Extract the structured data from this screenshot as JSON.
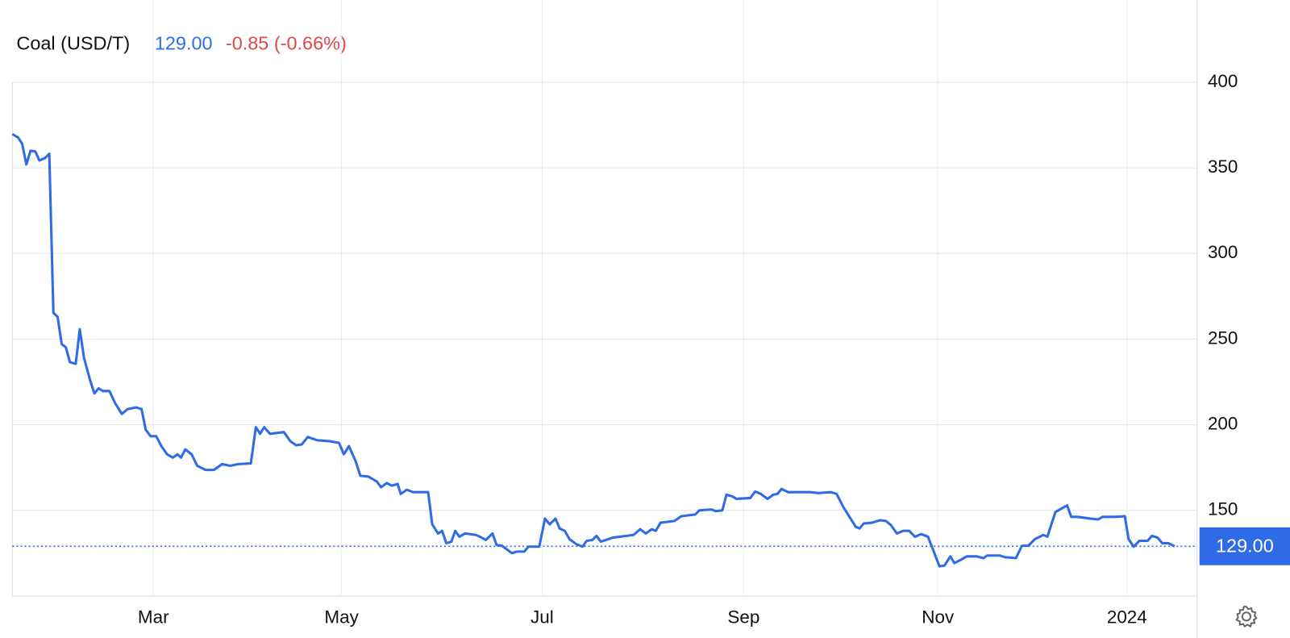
{
  "chart_data": {
    "type": "line",
    "title": "Coal (USD/T)",
    "price": "129.00",
    "change": "-0.85 (-0.66%)",
    "x": [
      0,
      1.8,
      3.1,
      4.4,
      5.7,
      7.2,
      8.5,
      10.3,
      11.6,
      12.9,
      14.2,
      15.5,
      16.8,
      18.1,
      19.9,
      21.2,
      22.5,
      24.5,
      25.8,
      27.1,
      28.4,
      30.5,
      32.3,
      34.4,
      36.2,
      38.8,
      40.6,
      41.9,
      43.4,
      45.2,
      46.8,
      48.6,
      50.4,
      51.9,
      53,
      54.3,
      56.3,
      58.1,
      60.7,
      63.3,
      65.9,
      68.4,
      71,
      74.9,
      76.5,
      77.8,
      79.1,
      80.9,
      85.3,
      87.3,
      89.1,
      90.9,
      92.8,
      95.9,
      99.5,
      102.6,
      104.1,
      105.7,
      107.8,
      109.3,
      111.9,
      114.5,
      115.8,
      117.6,
      119.2,
      121,
      122,
      123.9,
      125.9,
      130.6,
      131.9,
      133.7,
      135,
      136.3,
      137.9,
      139.1,
      140.4,
      142.2,
      145.6,
      147.4,
      148.7,
      150.8,
      152.1,
      153.8,
      156.9,
      158.5,
      160.8,
      162.1,
      165.5,
      167.3,
      168.8,
      170.6,
      171.9,
      173.5,
      175,
      177.1,
      179.1,
      180.4,
      182.2,
      183.5,
      184.8,
      188.6,
      195.1,
      197.2,
      199,
      200.8,
      202.1,
      203.6,
      208,
      210.1,
      214.5,
      215.8,
      219.6,
      220.9,
      223,
      224.3,
      226.1,
      227.4,
      231.8,
      233.3,
      235.1,
      237.2,
      239,
      240.3,
      241.6,
      243.7,
      250.6,
      253.2,
      257.1,
      258.9,
      261,
      264.9,
      266.1,
      267.4,
      270,
      272.6,
      274.4,
      276,
      277.8,
      279.8,
      281.7,
      283.5,
      285.5,
      287.6,
      289.4,
      291.2,
      292.8,
      294.6,
      295.9,
      298,
      299.8,
      302.8,
      305,
      306.2,
      310.1,
      311.9,
      315.2,
      317.1,
      319.1,
      321.2,
      323.8,
      325.1,
      327.6,
      331.3,
      332.6,
      334.6,
      338.5,
      341.1,
      342.4,
      346.3,
      349.4,
      350.6,
      352.2,
      354,
      356.6,
      357.9,
      359.7,
      361.2,
      363.1,
      365.1
    ],
    "series": [
      {
        "color": "#2f6be6",
        "values": [
          369.7,
          367.8,
          364,
          352,
          360,
          359.6,
          354.3,
          355.8,
          358.2,
          265.4,
          263,
          247.1,
          245.2,
          236.5,
          235.6,
          255.8,
          239,
          225.5,
          218.3,
          221.2,
          219.7,
          219.7,
          212.5,
          206.3,
          209.1,
          210.1,
          209.1,
          197.1,
          193.3,
          193.3,
          187.5,
          182.7,
          180.8,
          182.7,
          180.8,
          185.6,
          182.7,
          176,
          173.6,
          173.6,
          177,
          176,
          177,
          177.4,
          198.6,
          194.7,
          198.6,
          194.7,
          195.7,
          190.4,
          188,
          188.5,
          192.8,
          190.9,
          190.4,
          189.4,
          182.7,
          187.5,
          178.8,
          170.2,
          169.7,
          166.8,
          163.5,
          165.9,
          164.4,
          165.4,
          159.6,
          162,
          160.6,
          160.6,
          141.8,
          136.5,
          138,
          130.8,
          131.7,
          138,
          134.6,
          136.5,
          135.6,
          134.1,
          132.7,
          136.5,
          129.8,
          129.3,
          125,
          125.9,
          125.9,
          128.8,
          128.8,
          145.2,
          141.8,
          145.2,
          139.4,
          138,
          133.2,
          130.3,
          128.8,
          132.2,
          132.7,
          135.1,
          131.7,
          134.1,
          135.6,
          139,
          136.5,
          139,
          138,
          142.8,
          143.8,
          146.6,
          147.6,
          150,
          150.5,
          149.5,
          150,
          159.1,
          158.2,
          156.7,
          157.2,
          161,
          159.6,
          156.7,
          159.1,
          159.6,
          162.5,
          160.6,
          160.6,
          160.1,
          160.6,
          159.6,
          151.9,
          140.4,
          139.4,
          142.3,
          142.8,
          144.2,
          143.8,
          141.3,
          136.5,
          138,
          138,
          134.6,
          136.1,
          134.6,
          125.9,
          117.3,
          117.8,
          123.1,
          119.2,
          121.2,
          123.1,
          123.1,
          122.1,
          123.6,
          123.6,
          122.6,
          122.1,
          129.3,
          129.3,
          133.2,
          135.6,
          134.6,
          149,
          152.9,
          146.2,
          146.2,
          145.2,
          144.7,
          146.2,
          146.2,
          146.6,
          133.2,
          128.8,
          132.2,
          132.2,
          135.1,
          134.1,
          130.8,
          130.8,
          129
        ]
      }
    ],
    "xlim": [
      0,
      372.1
    ],
    "xticks": [
      {
        "value": 44.3,
        "label": "Mar"
      },
      {
        "value": 103.4,
        "label": "May"
      },
      {
        "value": 166.4,
        "label": "Jul"
      },
      {
        "value": 229.7,
        "label": "Sep"
      },
      {
        "value": 290.7,
        "label": "Nov"
      },
      {
        "value": 350.1,
        "label": "2024"
      }
    ],
    "ylim": [
      100,
      448
    ],
    "yticks": [
      150,
      200,
      250,
      300,
      350,
      400
    ],
    "grid": true
  }
}
